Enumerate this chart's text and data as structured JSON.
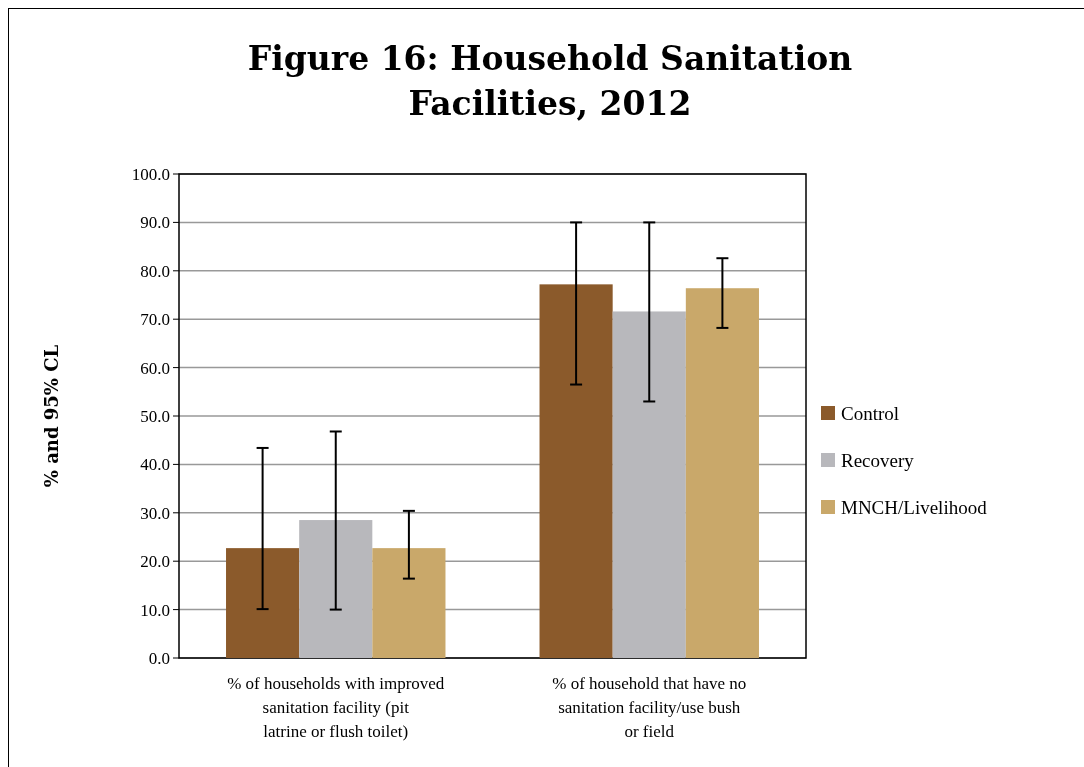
{
  "chart_data": {
    "type": "bar",
    "title": "Figure 16: Household Sanitation Facilities, 2012",
    "ylabel": "% and 95% CL",
    "categories": [
      "% of households with improved sanitation facility (pit latrine or flush toilet)",
      "% of household that have no sanitation facility/use bush or field"
    ],
    "series": [
      {
        "name": "Control",
        "color": "#8b5a2b",
        "values": [
          22.7,
          77.2
        ],
        "errors": [
          [
            10.1,
            43.4
          ],
          [
            56.5,
            90.0
          ]
        ]
      },
      {
        "name": "Recovery",
        "color": "#b8b8bc",
        "values": [
          28.5,
          71.6
        ],
        "errors": [
          [
            10.0,
            46.8
          ],
          [
            53.0,
            90.0
          ]
        ]
      },
      {
        "name": "MNCH/Livelihood",
        "color": "#c9a86a",
        "values": [
          22.7,
          76.4
        ],
        "errors": [
          [
            16.4,
            30.4
          ],
          [
            68.2,
            82.6
          ]
        ]
      }
    ],
    "ylim": [
      0,
      100
    ],
    "yticks": [
      {
        "value": 0,
        "label": "0.0"
      },
      {
        "value": 10,
        "label": "10.0"
      },
      {
        "value": 20,
        "label": "20.0"
      },
      {
        "value": 30,
        "label": "30.0"
      },
      {
        "value": 40,
        "label": "40.0"
      },
      {
        "value": 50,
        "label": "50.0"
      },
      {
        "value": 60,
        "label": "60.0"
      },
      {
        "value": 70,
        "label": "70.0"
      },
      {
        "value": 80,
        "label": "80.0"
      },
      {
        "value": 90,
        "label": "90.0"
      },
      {
        "value": 100,
        "label": "100.0"
      }
    ],
    "grid": "y",
    "legend": "right"
  }
}
